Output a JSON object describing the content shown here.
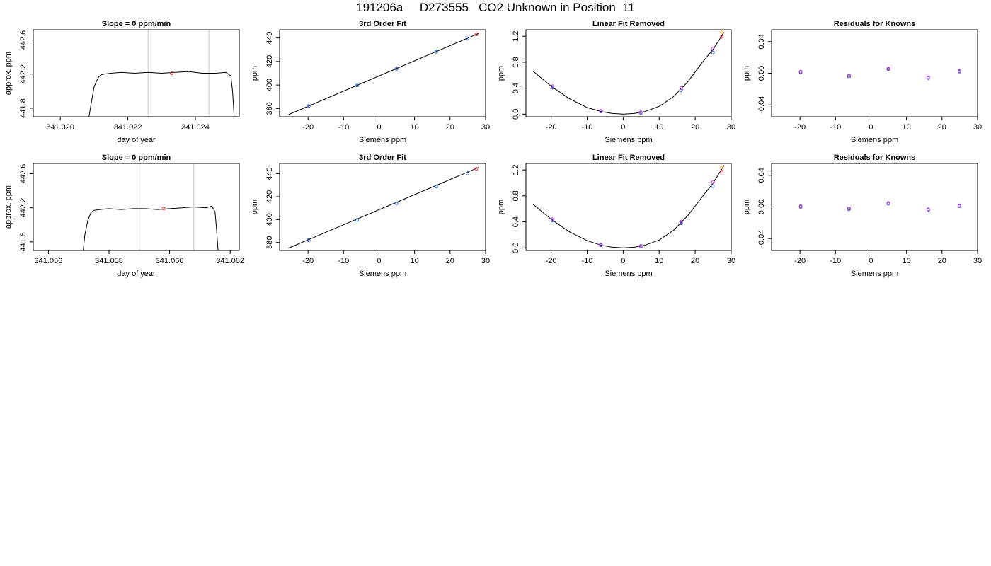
{
  "page": {
    "title": "191206a     D273555   CO2 Unknown in Position  11"
  },
  "chart_data": [
    {
      "type": "line",
      "title": "Slope =  0  ppm/min",
      "xlabel": "day of year",
      "ylabel": "approx. ppm",
      "xlim": [
        341.0192,
        341.0253
      ],
      "ylim": [
        441.7,
        442.72
      ],
      "xticks": [
        341.02,
        341.022,
        341.024
      ],
      "xtick_labels": [
        "341.020",
        "341.022",
        "341.024"
      ],
      "yticks": [
        441.8,
        442.2,
        442.6
      ],
      "ytick_labels": [
        "441.8",
        "442.2",
        "442.6"
      ],
      "vlines": [
        341.0226,
        341.0244
      ],
      "series": [
        {
          "x": [
            341.02085,
            341.0209,
            341.021,
            341.0211,
            341.02115,
            341.0212,
            341.0213,
            341.0215,
            341.0218,
            341.0222,
            341.0226,
            341.023,
            341.0234,
            341.0238,
            341.0242,
            341.0246,
            341.0249,
            341.02505,
            341.0251,
            341.02515
          ],
          "y": [
            441.7,
            441.82,
            442.05,
            442.14,
            442.17,
            442.19,
            442.2,
            442.21,
            442.22,
            442.21,
            442.22,
            442.21,
            442.22,
            442.23,
            442.21,
            442.21,
            442.22,
            442.18,
            442.0,
            441.7
          ]
        }
      ],
      "highlight_points": [
        {
          "x": 341.0233,
          "y": 442.21,
          "color": "#e8333b"
        }
      ]
    },
    {
      "type": "scatter",
      "title": "3rd Order Fit",
      "xlabel": "Siemens ppm",
      "ylabel": "ppm",
      "xlim": [
        -28,
        30
      ],
      "ylim": [
        373,
        447
      ],
      "xticks": [
        -20,
        -10,
        0,
        10,
        20,
        30
      ],
      "xtick_labels": [
        "-20",
        "-10",
        "0",
        "10",
        "20",
        "30"
      ],
      "yticks": [
        380,
        400,
        420,
        440
      ],
      "ytick_labels": [
        "380",
        "400",
        "420",
        "440"
      ],
      "fit_line": [
        [
          -25.5,
          374.8
        ],
        [
          28,
          443.8
        ]
      ],
      "points": [
        {
          "x": -19.8,
          "y": 382.2,
          "color": "#2a5ad8"
        },
        {
          "x": -6.2,
          "y": 399.6,
          "color": "#2a5ad8"
        },
        {
          "x": 4.9,
          "y": 413.8,
          "color": "#2a5ad8"
        },
        {
          "x": 16.1,
          "y": 428.3,
          "color": "#2a5ad8"
        },
        {
          "x": 24.9,
          "y": 439.7,
          "color": "#2a5ad8"
        },
        {
          "x": 27.4,
          "y": 443.0,
          "color": "#e8333b"
        }
      ]
    },
    {
      "type": "scatter",
      "title": "Linear Fit Removed",
      "xlabel": "Siemens ppm",
      "ylabel": "ppm",
      "xlim": [
        -27,
        30
      ],
      "ylim": [
        -0.04,
        1.3
      ],
      "xticks": [
        -20,
        -10,
        0,
        10,
        20,
        30
      ],
      "xtick_labels": [
        "-20",
        "-10",
        "0",
        "10",
        "20",
        "30"
      ],
      "yticks": [
        0.0,
        0.4,
        0.8,
        1.2
      ],
      "ytick_labels": [
        "0.0",
        "0.4",
        "0.8",
        "1.2"
      ],
      "curve": {
        "x": [
          -25,
          -20,
          -15,
          -10,
          -6,
          -3,
          0,
          3,
          6,
          10,
          14,
          18,
          22,
          25,
          28
        ],
        "y": [
          0.66,
          0.43,
          0.24,
          0.1,
          0.04,
          0.01,
          0.0,
          0.01,
          0.04,
          0.12,
          0.27,
          0.5,
          0.8,
          1.0,
          1.26
        ]
      },
      "points": [
        {
          "x": -19.6,
          "y": 0.41,
          "color": "#2a5ad8"
        },
        {
          "x": -19.6,
          "y": 0.43,
          "color": "#c73ad6"
        },
        {
          "x": -6.2,
          "y": 0.04,
          "color": "#2a5ad8"
        },
        {
          "x": -6.2,
          "y": 0.05,
          "color": "#c73ad6"
        },
        {
          "x": 4.9,
          "y": 0.02,
          "color": "#2a5ad8"
        },
        {
          "x": 4.9,
          "y": 0.03,
          "color": "#c73ad6"
        },
        {
          "x": 16.1,
          "y": 0.37,
          "color": "#2a5ad8"
        },
        {
          "x": 16.1,
          "y": 0.4,
          "color": "#c73ad6"
        },
        {
          "x": 24.9,
          "y": 0.95,
          "color": "#2a5ad8"
        },
        {
          "x": 24.9,
          "y": 1.01,
          "color": "#c73ad6"
        },
        {
          "x": 27.4,
          "y": 1.19,
          "color": "#e8333b"
        },
        {
          "x": 27.4,
          "y": 1.26,
          "color": "#f0a020"
        }
      ]
    },
    {
      "type": "scatter",
      "title": "Residuals for Knowns",
      "xlabel": "Siemens ppm",
      "ylabel": "ppm",
      "xlim": [
        -28,
        30
      ],
      "ylim": [
        -0.055,
        0.055
      ],
      "xticks": [
        -20,
        -10,
        0,
        10,
        20,
        30
      ],
      "xtick_labels": [
        "-20",
        "-10",
        "0",
        "10",
        "20",
        "30"
      ],
      "yticks": [
        -0.04,
        0.0,
        0.04
      ],
      "ytick_labels": [
        "-0.04",
        "0.00",
        "0.04"
      ],
      "points": [
        {
          "x": -19.8,
          "y": 0.001,
          "color": "#2a5ad8"
        },
        {
          "x": -19.8,
          "y": 0.002,
          "color": "#c73ad6"
        },
        {
          "x": -6.2,
          "y": -0.004,
          "color": "#2a5ad8"
        },
        {
          "x": -6.2,
          "y": -0.003,
          "color": "#c73ad6"
        },
        {
          "x": 4.9,
          "y": 0.005,
          "color": "#2a5ad8"
        },
        {
          "x": 4.9,
          "y": 0.006,
          "color": "#c73ad6"
        },
        {
          "x": 16.1,
          "y": -0.006,
          "color": "#2a5ad8"
        },
        {
          "x": 16.1,
          "y": -0.005,
          "color": "#c73ad6"
        },
        {
          "x": 24.9,
          "y": 0.002,
          "color": "#2a5ad8"
        },
        {
          "x": 24.9,
          "y": 0.003,
          "color": "#c73ad6"
        }
      ]
    },
    {
      "type": "line",
      "title": "Slope =  0  ppm/min",
      "xlabel": "day of year",
      "ylabel": "approx. ppm",
      "xlim": [
        341.0555,
        341.0623
      ],
      "ylim": [
        441.7,
        442.72
      ],
      "xticks": [
        341.056,
        341.058,
        341.06,
        341.062
      ],
      "xtick_labels": [
        "341.056",
        "341.058",
        "341.060",
        "341.062"
      ],
      "yticks": [
        441.8,
        442.2,
        442.6
      ],
      "ytick_labels": [
        "441.8",
        "442.2",
        "442.6"
      ],
      "vlines": [
        341.059,
        341.0608
      ],
      "series": [
        {
          "x": [
            341.05715,
            341.0572,
            341.0573,
            341.0574,
            341.0575,
            341.0577,
            341.058,
            341.0584,
            341.0588,
            341.0592,
            341.0596,
            341.06,
            341.0604,
            341.0608,
            341.0612,
            341.0614,
            341.0615,
            341.06155,
            341.0616
          ],
          "y": [
            441.7,
            441.88,
            442.05,
            442.14,
            442.17,
            442.18,
            442.19,
            442.18,
            442.19,
            442.19,
            442.18,
            442.19,
            442.2,
            442.21,
            442.2,
            442.22,
            442.15,
            441.95,
            441.7
          ]
        }
      ],
      "highlight_points": [
        {
          "x": 341.0598,
          "y": 442.19,
          "color": "#e8333b"
        }
      ]
    },
    {
      "type": "scatter",
      "title": "3rd Order Fit",
      "xlabel": "Siemens ppm",
      "ylabel": "ppm",
      "xlim": [
        -28,
        30
      ],
      "ylim": [
        373,
        449
      ],
      "xticks": [
        -20,
        -10,
        0,
        10,
        20,
        30
      ],
      "xtick_labels": [
        "-20",
        "-10",
        "0",
        "10",
        "20",
        "30"
      ],
      "yticks": [
        380,
        400,
        420,
        440
      ],
      "ytick_labels": [
        "380",
        "400",
        "420",
        "440"
      ],
      "fit_line": [
        [
          -25.5,
          375.0
        ],
        [
          28,
          445.5
        ]
      ],
      "points": [
        {
          "x": -19.8,
          "y": 382.0,
          "color": "#2a5ad8"
        },
        {
          "x": -6.2,
          "y": 399.6,
          "color": "#2a5ad8"
        },
        {
          "x": 4.9,
          "y": 414.2,
          "color": "#2a5ad8"
        },
        {
          "x": 16.1,
          "y": 428.8,
          "color": "#2a5ad8"
        },
        {
          "x": 24.9,
          "y": 440.3,
          "color": "#2a5ad8"
        },
        {
          "x": 27.4,
          "y": 444.3,
          "color": "#e8333b"
        }
      ]
    },
    {
      "type": "scatter",
      "title": "Linear Fit Removed",
      "xlabel": "Siemens ppm",
      "ylabel": "ppm",
      "xlim": [
        -27,
        30
      ],
      "ylim": [
        -0.04,
        1.3
      ],
      "xticks": [
        -20,
        -10,
        0,
        10,
        20,
        30
      ],
      "xtick_labels": [
        "-20",
        "-10",
        "0",
        "10",
        "20",
        "30"
      ],
      "yticks": [
        0.0,
        0.4,
        0.8,
        1.2
      ],
      "ytick_labels": [
        "0.0",
        "0.4",
        "0.8",
        "1.2"
      ],
      "curve": {
        "x": [
          -25,
          -20,
          -15,
          -10,
          -6,
          -3,
          0,
          3,
          6,
          10,
          14,
          18,
          22,
          25,
          28
        ],
        "y": [
          0.67,
          0.44,
          0.25,
          0.11,
          0.04,
          0.01,
          0.0,
          0.01,
          0.04,
          0.12,
          0.27,
          0.5,
          0.79,
          1.0,
          1.27
        ]
      },
      "points": [
        {
          "x": -19.6,
          "y": 0.42,
          "color": "#2a5ad8"
        },
        {
          "x": -19.6,
          "y": 0.44,
          "color": "#c73ad6"
        },
        {
          "x": -6.2,
          "y": 0.04,
          "color": "#2a5ad8"
        },
        {
          "x": -6.2,
          "y": 0.05,
          "color": "#c73ad6"
        },
        {
          "x": 4.9,
          "y": 0.02,
          "color": "#2a5ad8"
        },
        {
          "x": 4.9,
          "y": 0.03,
          "color": "#c73ad6"
        },
        {
          "x": 16.1,
          "y": 0.38,
          "color": "#2a5ad8"
        },
        {
          "x": 16.1,
          "y": 0.4,
          "color": "#c73ad6"
        },
        {
          "x": 24.9,
          "y": 0.95,
          "color": "#2a5ad8"
        },
        {
          "x": 24.9,
          "y": 1.01,
          "color": "#c73ad6"
        },
        {
          "x": 27.4,
          "y": 1.17,
          "color": "#e8333b"
        },
        {
          "x": 27.4,
          "y": 1.24,
          "color": "#f0a020"
        }
      ]
    },
    {
      "type": "scatter",
      "title": "Residuals for Knowns",
      "xlabel": "Siemens ppm",
      "ylabel": "ppm",
      "xlim": [
        -28,
        30
      ],
      "ylim": [
        -0.055,
        0.055
      ],
      "xticks": [
        -20,
        -10,
        0,
        10,
        20,
        30
      ],
      "xtick_labels": [
        "-20",
        "-10",
        "0",
        "10",
        "20",
        "30"
      ],
      "yticks": [
        -0.04,
        0.0,
        0.04
      ],
      "ytick_labels": [
        "-0.04",
        "0.00",
        "0.04"
      ],
      "points": [
        {
          "x": -19.8,
          "y": 0.0,
          "color": "#2a5ad8"
        },
        {
          "x": -19.8,
          "y": 0.001,
          "color": "#c73ad6"
        },
        {
          "x": -6.2,
          "y": -0.003,
          "color": "#2a5ad8"
        },
        {
          "x": -6.2,
          "y": -0.002,
          "color": "#c73ad6"
        },
        {
          "x": 4.9,
          "y": 0.004,
          "color": "#2a5ad8"
        },
        {
          "x": 4.9,
          "y": 0.005,
          "color": "#c73ad6"
        },
        {
          "x": 16.1,
          "y": -0.004,
          "color": "#2a5ad8"
        },
        {
          "x": 16.1,
          "y": -0.003,
          "color": "#c73ad6"
        },
        {
          "x": 24.9,
          "y": 0.001,
          "color": "#2a5ad8"
        },
        {
          "x": 24.9,
          "y": 0.002,
          "color": "#c73ad6"
        }
      ]
    }
  ]
}
